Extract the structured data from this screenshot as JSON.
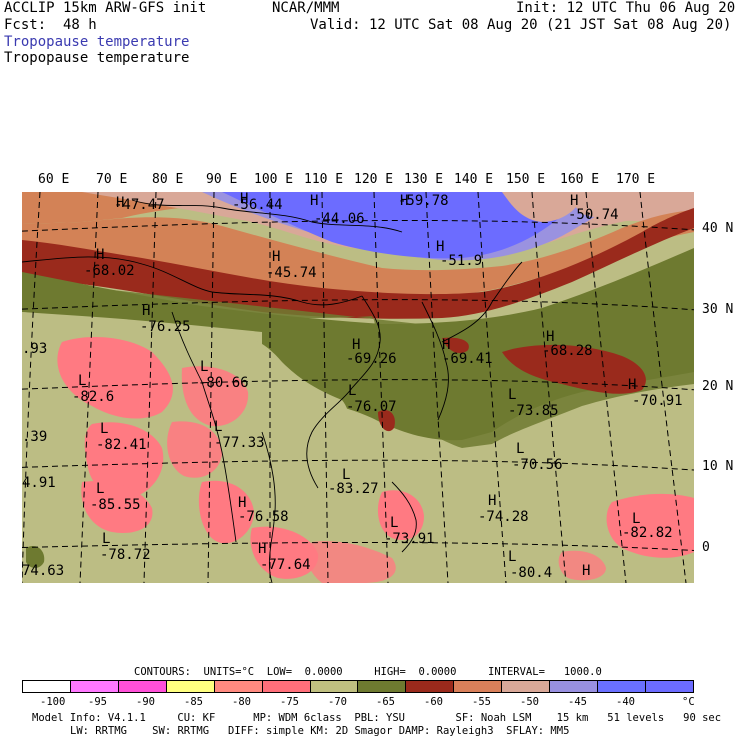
{
  "header": {
    "model": "ACCLIP 15km ARW-GFS init",
    "org": "NCAR/MMM",
    "init": "Init: 12 UTC Thu 06 Aug 20",
    "fcst": "Fcst:  48 h",
    "valid": "Valid: 12 UTC Sat 08 Aug 20 (21 JST Sat 08 Aug 20)",
    "field_title_blue": "Tropopause temperature",
    "field_title_black": "Tropopause temperature"
  },
  "map": {
    "lon_labels": [
      "60 E",
      "70 E",
      "80 E",
      "90 E",
      "100 E",
      "110 E",
      "120 E",
      "130 E",
      "140 E",
      "150 E",
      "160 E",
      "170 E"
    ],
    "lat_labels": [
      "40 N",
      "30 N",
      "20 N",
      "10 N",
      "0"
    ],
    "extrema": [
      {
        "type": "H",
        "value": "-47.47"
      },
      {
        "type": "H",
        "value": "-56.44"
      },
      {
        "type": "H",
        "value": "-44.06"
      },
      {
        "type": "H",
        "value": "-59.78"
      },
      {
        "type": "H",
        "value": "-50.74"
      },
      {
        "type": "H",
        "value": "-68.02"
      },
      {
        "type": "H",
        "value": "-45.74"
      },
      {
        "type": "H",
        "value": "-51.9"
      },
      {
        "type": "H",
        "value": "-76.25"
      },
      {
        "type": "H",
        "value": "-69.26"
      },
      {
        "type": "H",
        "value": "-69.41"
      },
      {
        "type": "H",
        "value": "-68.28"
      },
      {
        "type": "L",
        "value": "-80.66"
      },
      {
        "type": "L",
        "value": "-82.6"
      },
      {
        "type": "L",
        "value": "-76.07"
      },
      {
        "type": "L",
        "value": "-73.85"
      },
      {
        "type": "H",
        "value": "-70.91"
      },
      {
        "type": "L",
        "value": "-82.41"
      },
      {
        "type": "L",
        "value": "-77.33"
      },
      {
        "type": "L",
        "value": "-70.56"
      },
      {
        "type": "L",
        "value": "-83.27"
      },
      {
        "type": "L",
        "value": "-85.55"
      },
      {
        "type": "H",
        "value": "-76.58"
      },
      {
        "type": "H",
        "value": "-74.28"
      },
      {
        "type": "L",
        "value": "-73.91"
      },
      {
        "type": "L",
        "value": "-82.82"
      },
      {
        "type": "L",
        "value": "-78.72"
      },
      {
        "type": "H",
        "value": "-77.64"
      },
      {
        "type": "L",
        "value": "-80.4"
      },
      {
        "type": "H",
        "value": ""
      }
    ],
    "edge_values": [
      ".93",
      ".39",
      "4.91",
      "74.63"
    ]
  },
  "contours_line": "CONTOURS:  UNITS=°C  LOW=  0.0000     HIGH=  0.0000     INTERVAL=   1000.0",
  "colorbar": {
    "colors": [
      "#ffffff",
      "#ff78ff",
      "#ff50d8",
      "#ffff80",
      "#ff8a80",
      "#ff6f7a",
      "#bfbf80",
      "#6e7a30",
      "#9a2a1c",
      "#d9805a",
      "#d9a898",
      "#9890e0",
      "#6a70ff",
      "#6c6cff"
    ],
    "tick_labels": [
      "-100",
      "-95",
      "-90",
      "-85",
      "-80",
      "-75",
      "-70",
      "-65",
      "-60",
      "-55",
      "-50",
      "-45",
      "-40",
      "°C"
    ]
  },
  "footer": {
    "line1": "Model Info: V4.1.1     CU: KF      MP: WDM 6class  PBL: YSU        SF: Noah LSM    15 km   51 levels   90 sec",
    "line2": "LW: RRTMG    SW: RRTMG   DIFF: simple KM: 2D Smagor DAMP: Rayleigh3  SFLAY: MM5"
  }
}
